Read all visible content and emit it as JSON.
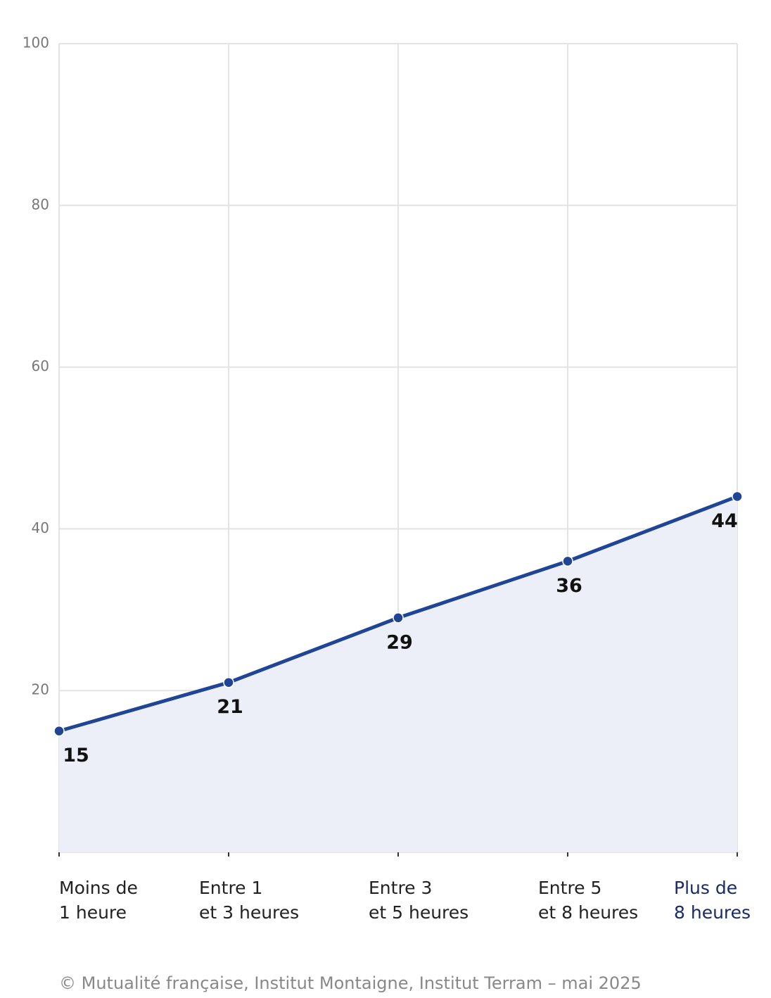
{
  "chart_data": {
    "type": "area",
    "categories": [
      "Moins de\n1 heure",
      "Entre 1\net 3 heures",
      "Entre 3\net 5 heures",
      "Entre 5\net 8 heures",
      "Plus de\n8 heures"
    ],
    "values": [
      15,
      21,
      29,
      36,
      44
    ],
    "color": "#1f4594",
    "fill": "#eceff8",
    "ylim": [
      0,
      100
    ],
    "yticks": [
      20,
      40,
      60,
      80,
      100
    ],
    "grid": true,
    "source": "© Mutualité française, Institut Montaigne, Institut Terram – mai 2025"
  }
}
